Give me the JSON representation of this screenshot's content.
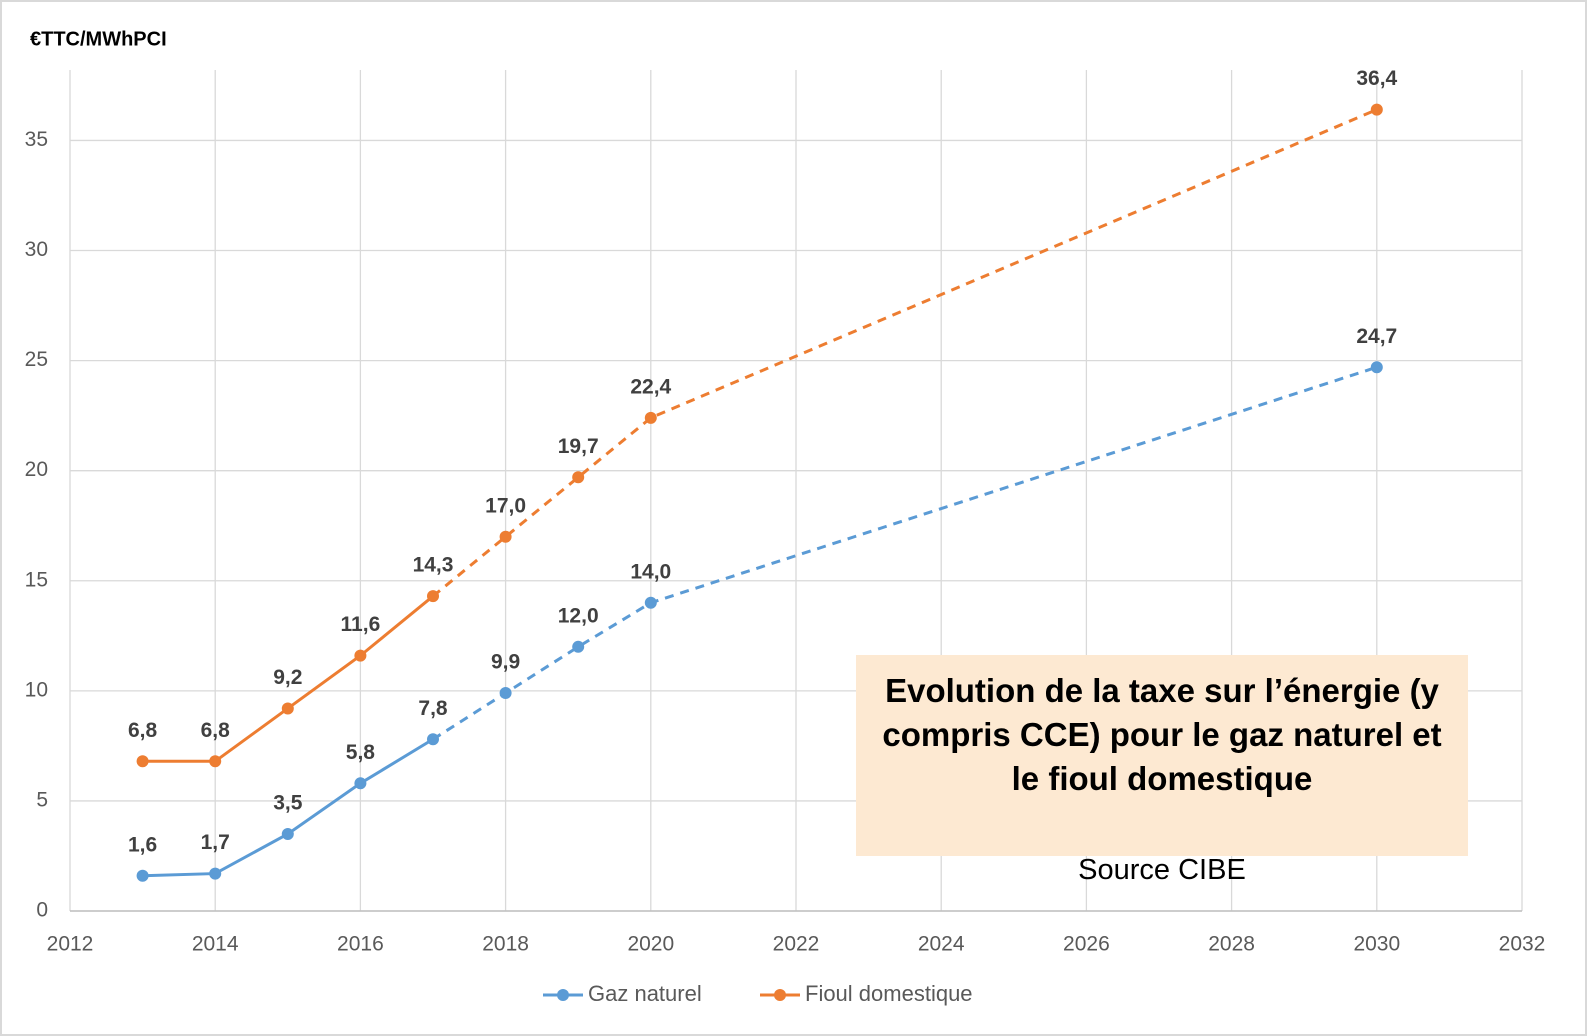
{
  "chart_data": {
    "type": "line",
    "title": "Evolution de la taxe sur l’énergie (y compris CCE) pour le gaz naturel et le fioul domestique",
    "subtitle": "Source CIBE",
    "y_label": "€TTC/MWhPCI",
    "x": [
      2013,
      2014,
      2015,
      2016,
      2017,
      2018,
      2019,
      2020,
      2030
    ],
    "series": [
      {
        "name": "Gaz naturel",
        "color": "#5b9bd5",
        "values": [
          1.6,
          1.7,
          3.5,
          5.8,
          7.8,
          9.9,
          12.0,
          14.0,
          24.7
        ],
        "value_labels": [
          "1,6",
          "1,7",
          "3,5",
          "5,8",
          "7,8",
          "9,9",
          "12,0",
          "14,0",
          "24,7"
        ]
      },
      {
        "name": "Fioul domestique",
        "color": "#ed7d31",
        "values": [
          6.8,
          6.8,
          9.2,
          11.6,
          14.3,
          17.0,
          19.7,
          22.4,
          36.4
        ],
        "value_labels": [
          "6,8",
          "6,8",
          "9,2",
          "11,6",
          "14,3",
          "17,0",
          "19,7",
          "22,4",
          "36,4"
        ]
      }
    ],
    "dashed_from_x": 2017,
    "xlim": [
      2012,
      2032
    ],
    "xticks": [
      2012,
      2014,
      2016,
      2018,
      2020,
      2022,
      2024,
      2026,
      2028,
      2030,
      2032
    ],
    "ylim": [
      0,
      38.2
    ],
    "yticks": [
      0,
      5,
      10,
      15,
      20,
      25,
      30,
      35
    ],
    "grid": true,
    "legend": "bottom"
  }
}
